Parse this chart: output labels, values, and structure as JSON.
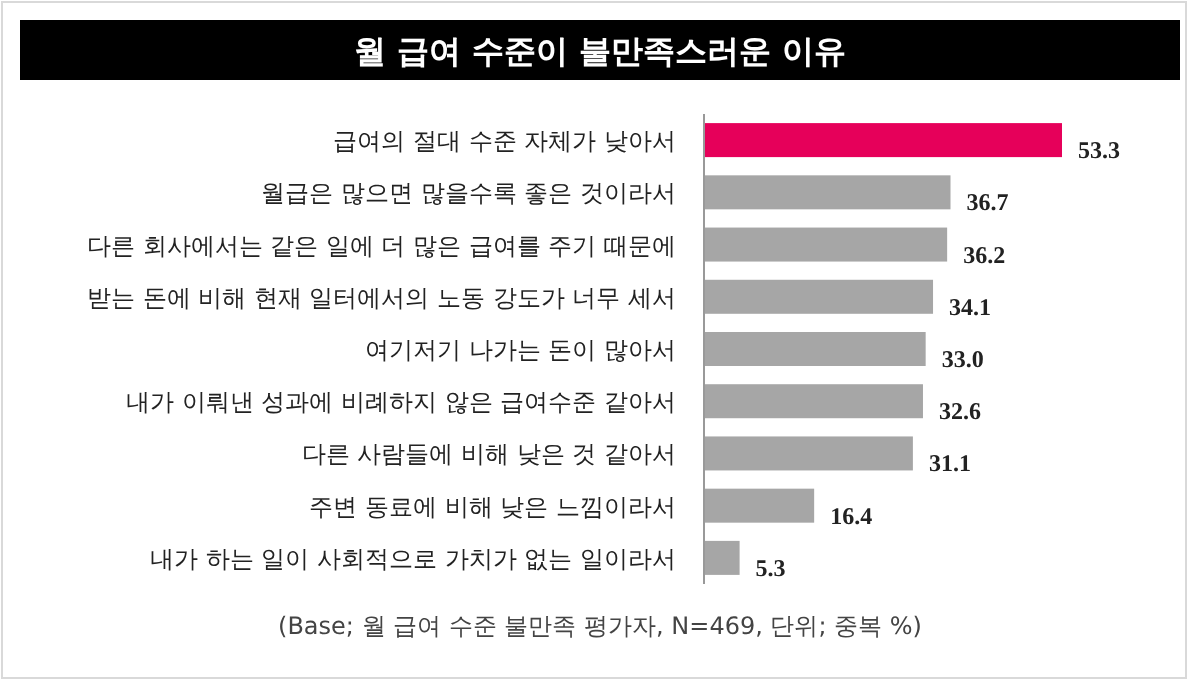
{
  "chart_data": {
    "type": "bar",
    "orientation": "horizontal",
    "title": "월 급여 수준이 불만족스러운 이유",
    "categories": [
      "급여의 절대 수준 자체가 낮아서",
      "월급은 많으면 많을수록 좋은 것이라서",
      "다른 회사에서는 같은 일에 더 많은 급여를 주기 때문에",
      "받는 돈에 비해 현재 일터에서의 노동 강도가 너무 세서",
      "여기저기 나가는 돈이 많아서",
      "내가 이뤄낸 성과에 비례하지 않은 급여수준 같아서",
      "다른 사람들에 비해 낮은 것 같아서",
      "주변 동료에 비해 낮은 느낌이라서",
      "내가 하는 일이 사회적으로 가치가 없는 일이라서"
    ],
    "values": [
      53.3,
      36.7,
      36.2,
      34.1,
      33.0,
      32.6,
      31.1,
      16.4,
      5.3
    ],
    "value_labels": [
      "53.3",
      "36.7",
      "36.2",
      "34.1",
      "33.0",
      "32.6",
      "31.1",
      "16.4",
      "5.3"
    ],
    "colors": [
      "#e6005a",
      "#a6a6a6",
      "#a6a6a6",
      "#a6a6a6",
      "#a6a6a6",
      "#a6a6a6",
      "#a6a6a6",
      "#a6a6a6",
      "#a6a6a6"
    ],
    "annotations": [
      "(Base; 월 급여 수준 불만족 평가자, N=469, 단위; 중복 %)"
    ]
  }
}
